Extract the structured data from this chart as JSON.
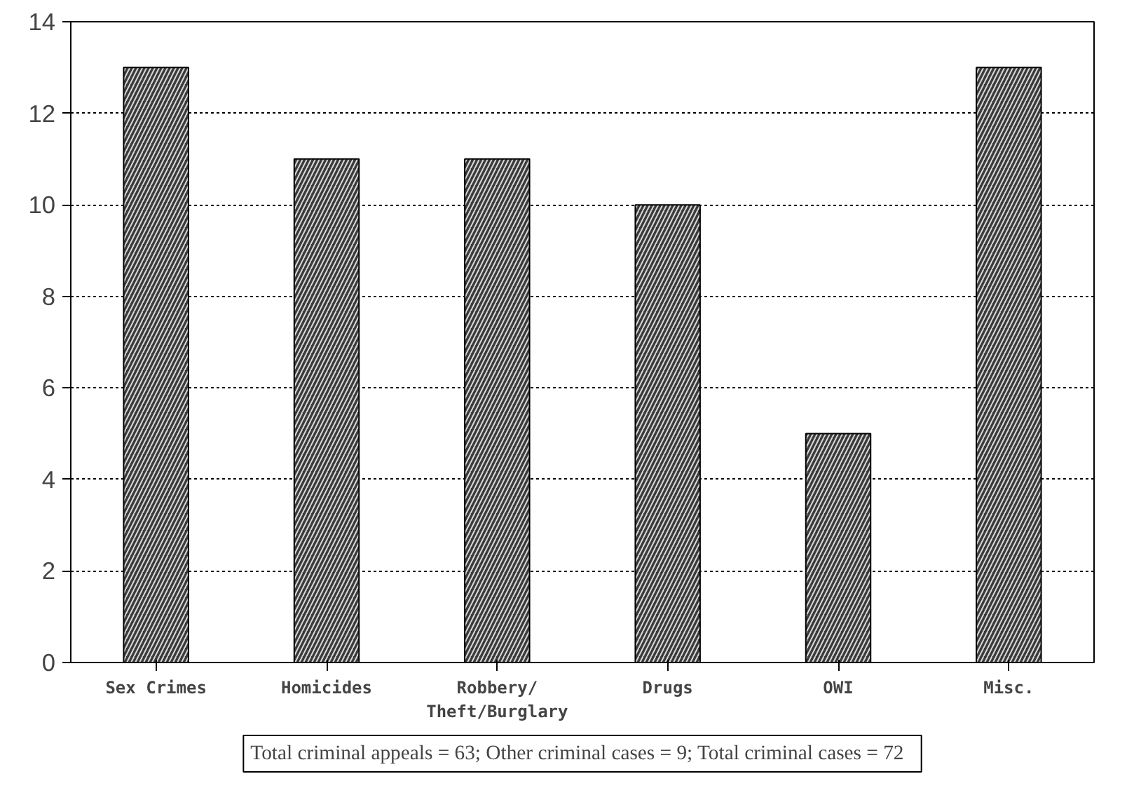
{
  "chart_data": {
    "type": "bar",
    "categories": [
      "Sex Crimes",
      "Homicides",
      "Robbery/\nTheft/Burglary",
      "Drugs",
      "OWI",
      "Misc."
    ],
    "values": [
      13,
      11,
      11,
      10,
      5,
      13
    ],
    "color": "#3a3a3a",
    "ylim": [
      0,
      14
    ],
    "yticks": [
      0,
      2,
      4,
      6,
      8,
      10,
      12,
      14
    ],
    "grid": "y",
    "annotations": [
      "Total criminal appeals = 63;  Other criminal cases = 9;  Total criminal cases = 72"
    ]
  }
}
